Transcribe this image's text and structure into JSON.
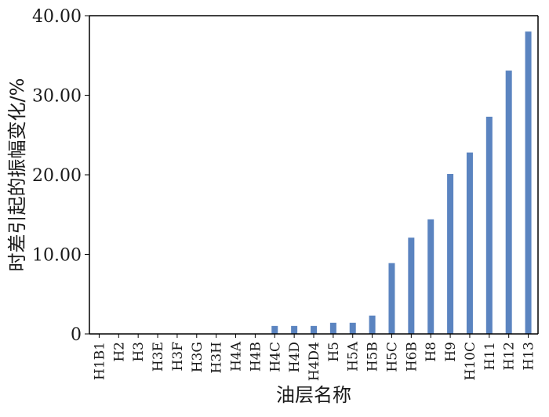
{
  "chart_data": {
    "type": "bar",
    "title": "",
    "xlabel": "油层名称",
    "ylabel": "时差引起的振幅变化/%",
    "categories": [
      "H1B1",
      "H2",
      "H3",
      "H3E",
      "H3F",
      "H3G",
      "H3H",
      "H4A",
      "H4B",
      "H4C",
      "H4D",
      "H4D4",
      "H5",
      "H5A",
      "H5B",
      "H5C",
      "H6B",
      "H8",
      "H9",
      "H10C",
      "H11",
      "H12",
      "H13"
    ],
    "values": [
      0,
      0,
      0,
      0,
      0,
      0,
      0,
      0,
      0,
      1.0,
      1.0,
      1.0,
      1.4,
      1.4,
      2.3,
      8.9,
      12.1,
      14.4,
      20.1,
      22.8,
      27.3,
      33.1,
      38.0
    ],
    "ylim": [
      0,
      40
    ],
    "yticks": [
      0,
      10,
      20,
      30,
      40
    ],
    "ytick_labels": [
      "0",
      "10.00",
      "20.00",
      "30.00",
      "40.00"
    ],
    "grid": false,
    "legend": "none",
    "bar_color": "#5b84c0"
  }
}
